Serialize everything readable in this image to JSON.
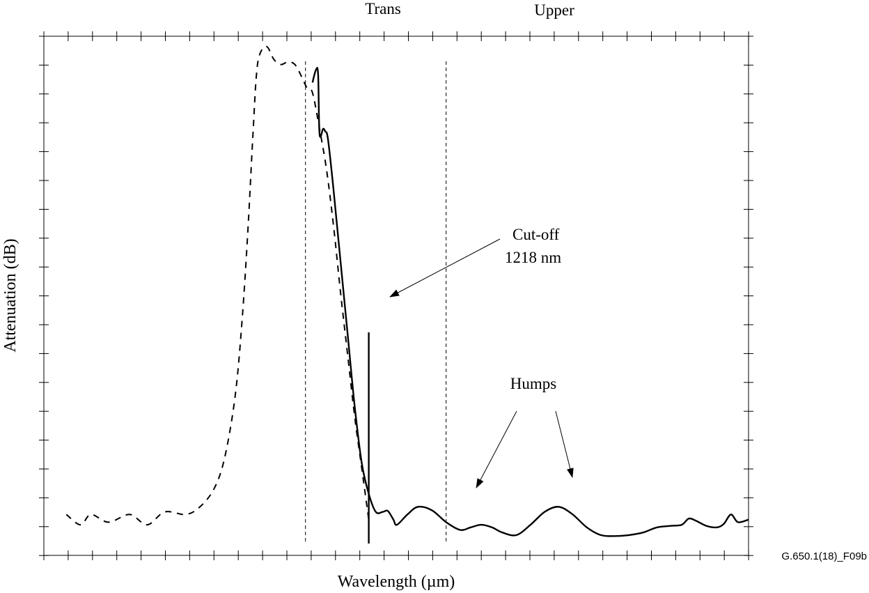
{
  "chart_data": {
    "type": "line",
    "title": "",
    "xlabel": "Wavelength (µm)",
    "ylabel": "Attenuation (dB)",
    "xlim": [
      0,
      1
    ],
    "ylim": [
      0,
      1
    ],
    "grid": false,
    "region_labels": [
      "Trans",
      "Upper"
    ],
    "region_boundaries": [
      0.37,
      0.57
    ],
    "series": [
      {
        "style": "dashed",
        "points": [
          [
            0.03,
            0.07
          ],
          [
            0.05,
            0.05
          ],
          [
            0.065,
            0.07
          ],
          [
            0.09,
            0.055
          ],
          [
            0.12,
            0.07
          ],
          [
            0.145,
            0.05
          ],
          [
            0.17,
            0.075
          ],
          [
            0.2,
            0.07
          ],
          [
            0.22,
            0.085
          ],
          [
            0.24,
            0.12
          ],
          [
            0.255,
            0.18
          ],
          [
            0.27,
            0.3
          ],
          [
            0.28,
            0.45
          ],
          [
            0.288,
            0.62
          ],
          [
            0.295,
            0.8
          ],
          [
            0.3,
            0.92
          ],
          [
            0.305,
            0.965
          ],
          [
            0.315,
            0.98
          ],
          [
            0.325,
            0.955
          ],
          [
            0.335,
            0.945
          ],
          [
            0.345,
            0.95
          ],
          [
            0.355,
            0.945
          ],
          [
            0.365,
            0.92
          ],
          [
            0.372,
            0.9
          ],
          [
            0.38,
            0.89
          ],
          [
            0.39,
            0.82
          ],
          [
            0.4,
            0.74
          ],
          [
            0.41,
            0.63
          ],
          [
            0.42,
            0.5
          ],
          [
            0.43,
            0.38
          ],
          [
            0.44,
            0.26
          ],
          [
            0.45,
            0.16
          ],
          [
            0.46,
            0.06
          ]
        ]
      },
      {
        "style": "solid",
        "points": [
          [
            0.38,
            0.91
          ],
          [
            0.385,
            0.935
          ],
          [
            0.388,
            0.925
          ],
          [
            0.39,
            0.81
          ],
          [
            0.395,
            0.82
          ],
          [
            0.398,
            0.815
          ],
          [
            0.402,
            0.8
          ],
          [
            0.41,
            0.7
          ],
          [
            0.42,
            0.56
          ],
          [
            0.43,
            0.42
          ],
          [
            0.44,
            0.28
          ],
          [
            0.45,
            0.17
          ],
          [
            0.46,
            0.11
          ],
          [
            0.47,
            0.075
          ],
          [
            0.48,
            0.075
          ],
          [
            0.487,
            0.077
          ],
          [
            0.495,
            0.06
          ],
          [
            0.5,
            0.05
          ],
          [
            0.515,
            0.07
          ],
          [
            0.53,
            0.085
          ],
          [
            0.55,
            0.078
          ],
          [
            0.57,
            0.055
          ],
          [
            0.59,
            0.04
          ],
          [
            0.605,
            0.045
          ],
          [
            0.62,
            0.05
          ],
          [
            0.635,
            0.045
          ],
          [
            0.65,
            0.035
          ],
          [
            0.67,
            0.03
          ],
          [
            0.69,
            0.05
          ],
          [
            0.71,
            0.075
          ],
          [
            0.73,
            0.085
          ],
          [
            0.75,
            0.07
          ],
          [
            0.77,
            0.045
          ],
          [
            0.79,
            0.03
          ],
          [
            0.81,
            0.028
          ],
          [
            0.83,
            0.03
          ],
          [
            0.85,
            0.035
          ],
          [
            0.87,
            0.045
          ],
          [
            0.89,
            0.048
          ],
          [
            0.905,
            0.05
          ],
          [
            0.915,
            0.062
          ],
          [
            0.925,
            0.058
          ],
          [
            0.94,
            0.048
          ],
          [
            0.955,
            0.045
          ],
          [
            0.965,
            0.052
          ],
          [
            0.975,
            0.07
          ],
          [
            0.985,
            0.055
          ],
          [
            1.0,
            0.06
          ]
        ]
      }
    ],
    "annotations": [
      {
        "text": "Cut-off",
        "target": [
          0.46,
          0.45
        ]
      },
      {
        "text": "1218 nm",
        "target": null
      },
      {
        "text": "Humps",
        "targets": [
          [
            0.6,
            0.12
          ],
          [
            0.73,
            0.13
          ]
        ]
      }
    ],
    "cutoff_marker_x": 0.46,
    "figure_id": "G.650.1(18)_F09b"
  }
}
